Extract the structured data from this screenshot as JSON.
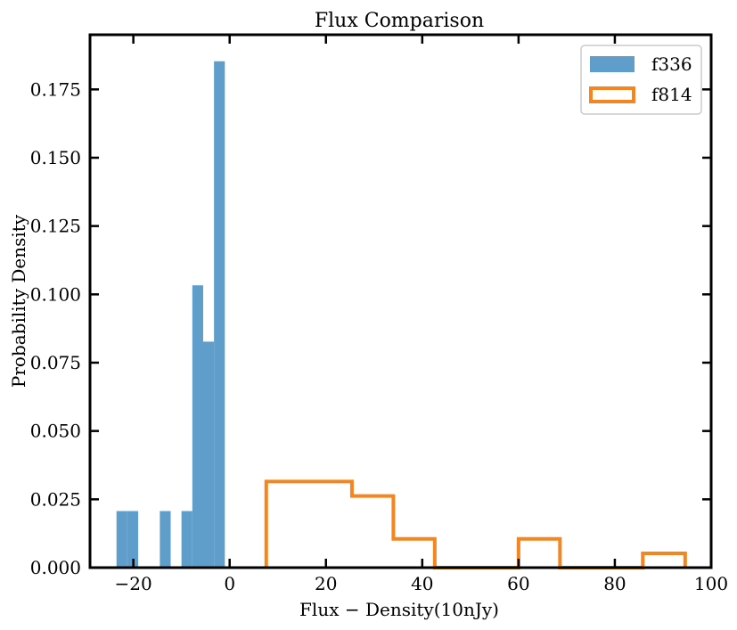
{
  "chart_data": {
    "type": "histogram",
    "title": "Flux   Comparison",
    "xlabel": "Flux − Density(10nJy)",
    "ylabel": "Probability Density",
    "xlim": [
      -29,
      100
    ],
    "ylim": [
      0,
      0.195
    ],
    "xticks": [
      -20,
      0,
      20,
      40,
      60,
      80,
      100
    ],
    "xtick_labels": [
      "−20",
      "0",
      "20",
      "40",
      "60",
      "80",
      "100"
    ],
    "yticks": [
      0.0,
      0.025,
      0.05,
      0.075,
      0.1,
      0.125,
      0.15,
      0.175
    ],
    "ytick_labels": [
      "0.000",
      "0.025",
      "0.050",
      "0.075",
      "0.100",
      "0.125",
      "0.150",
      "0.175"
    ],
    "grid": false,
    "legend_position": "top-right",
    "series": [
      {
        "name": "f336",
        "style": "filled",
        "color": "#5f9ecb",
        "bins": [
          {
            "x0": -23.5,
            "x1": -21.25,
            "value": 0.0207
          },
          {
            "x0": -21.25,
            "x1": -19.0,
            "value": 0.0207
          },
          {
            "x0": -19.0,
            "x1": -16.75,
            "value": 0.0
          },
          {
            "x0": -16.75,
            "x1": -14.5,
            "value": 0.0
          },
          {
            "x0": -14.5,
            "x1": -12.25,
            "value": 0.0207
          },
          {
            "x0": -12.25,
            "x1": -10.0,
            "value": 0.0
          },
          {
            "x0": -10.0,
            "x1": -7.75,
            "value": 0.0207
          },
          {
            "x0": -7.75,
            "x1": -5.5,
            "value": 0.1033
          },
          {
            "x0": -5.5,
            "x1": -3.25,
            "value": 0.0827
          },
          {
            "x0": -3.25,
            "x1": -1.0,
            "value": 0.1853
          }
        ]
      },
      {
        "name": "f814",
        "style": "step",
        "color": "#f5861f",
        "bins": [
          {
            "x0": 7.6,
            "x1": 16.2,
            "value": 0.0315
          },
          {
            "x0": 16.2,
            "x1": 25.4,
            "value": 0.0315
          },
          {
            "x0": 25.4,
            "x1": 34.0,
            "value": 0.0262
          },
          {
            "x0": 34.0,
            "x1": 42.6,
            "value": 0.0105
          },
          {
            "x0": 42.6,
            "x1": 51.4,
            "value": 0.0
          },
          {
            "x0": 51.4,
            "x1": 60.0,
            "value": 0.0
          },
          {
            "x0": 60.0,
            "x1": 68.6,
            "value": 0.0105
          },
          {
            "x0": 68.6,
            "x1": 77.2,
            "value": 0.0
          },
          {
            "x0": 77.2,
            "x1": 85.8,
            "value": 0.0
          },
          {
            "x0": 85.8,
            "x1": 94.6,
            "value": 0.0052
          }
        ]
      }
    ]
  }
}
